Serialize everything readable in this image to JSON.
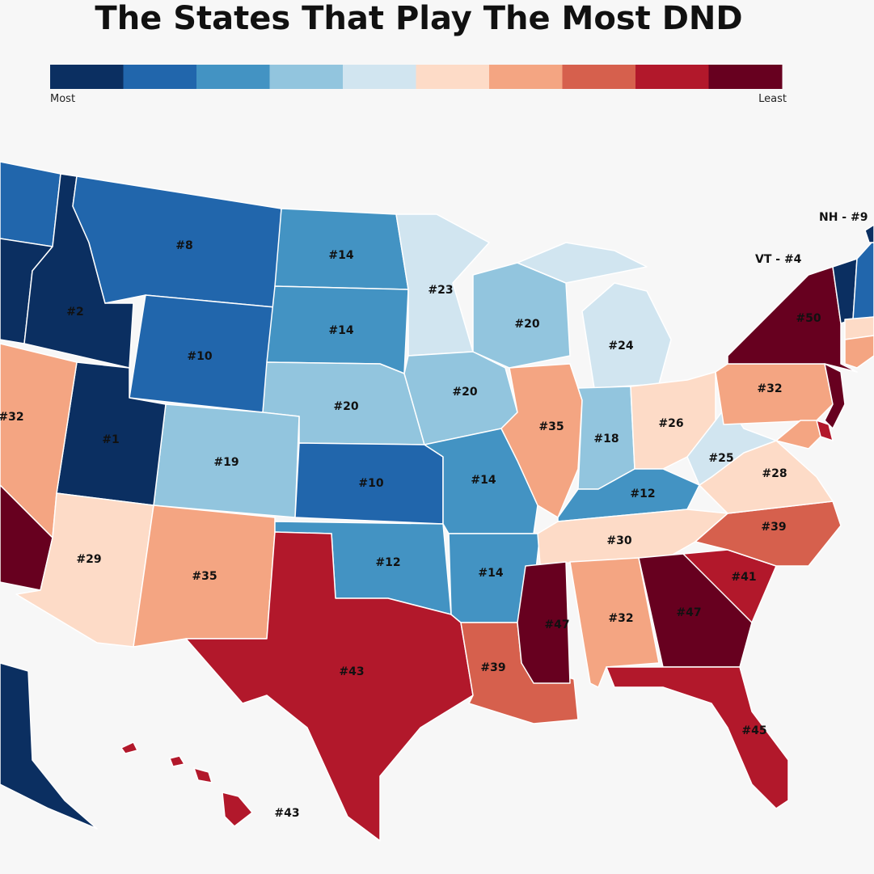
{
  "title": "The States That Play The Most DND",
  "legend": {
    "colors": [
      "#0b2f61",
      "#2166ac",
      "#4393c3",
      "#92c5de",
      "#d1e5f0",
      "#fddbc7",
      "#f4a582",
      "#d6604d",
      "#b2182b",
      "#67001f"
    ],
    "low_label": "Most",
    "high_label": "Least"
  },
  "states": [
    {
      "color": "#2166ac"
    },
    {
      "color": "#0b2f61"
    },
    {
      "label": "#2",
      "color": "#0b2f61"
    },
    {
      "label": "#8",
      "color": "#2166ac"
    },
    {
      "label": "#10",
      "color": "#2166ac"
    },
    {
      "label": "#14",
      "color": "#4393c3"
    },
    {
      "label": "#14",
      "color": "#4393c3"
    },
    {
      "label": "#20",
      "color": "#92c5de"
    },
    {
      "label": "#19",
      "color": "#92c5de"
    },
    {
      "label": "#1",
      "color": "#0b2f61"
    },
    {
      "label": "#32",
      "color": "#f4a582"
    },
    {
      "color": "#67001f"
    },
    {
      "label": "#29",
      "color": "#fddbc7"
    },
    {
      "label": "#35",
      "color": "#f4a582"
    },
    {
      "label": "#10",
      "color": "#2166ac"
    },
    {
      "label": "#12",
      "color": "#4393c3"
    },
    {
      "label": "#43",
      "color": "#b2182b"
    },
    {
      "label": "#23",
      "color": "#d1e5f0"
    },
    {
      "label": "#20",
      "color": "#92c5de"
    },
    {
      "label": "#14",
      "color": "#4393c3"
    },
    {
      "label": "#14",
      "color": "#4393c3"
    },
    {
      "label": "#39",
      "color": "#d6604d"
    },
    {
      "label": "#20",
      "color": "#92c5de"
    },
    {
      "label": "#35",
      "color": "#f4a582"
    },
    {
      "label": "#24",
      "color": "#d1e5f0"
    },
    {
      "label": "#18",
      "color": "#92c5de"
    },
    {
      "label": "#26",
      "color": "#fddbc7"
    },
    {
      "label": "#12",
      "color": "#4393c3"
    },
    {
      "label": "#30",
      "color": "#fddbc7"
    },
    {
      "label": "#47",
      "color": "#67001f"
    },
    {
      "label": "#32",
      "color": "#f4a582"
    },
    {
      "label": "#47",
      "color": "#67001f"
    },
    {
      "label": "#45",
      "color": "#b2182b"
    },
    {
      "label": "#41",
      "color": "#b2182b"
    },
    {
      "label": "#39",
      "color": "#d6604d"
    },
    {
      "label": "#28",
      "color": "#fddbc7"
    },
    {
      "label": "#25",
      "color": "#d1e5f0"
    },
    {
      "label": "#32",
      "color": "#f4a582"
    },
    {
      "label": "#50",
      "color": "#67001f"
    },
    {
      "color": "#67001f"
    },
    {
      "color": "#f4a582"
    },
    {
      "color": "#b2182b"
    },
    {
      "color": "#0b2f61"
    },
    {
      "color": "#2166ac"
    },
    {
      "color": "#0b2f61"
    },
    {
      "color": "#fddbc7"
    },
    {
      "color": "#f4a582"
    },
    {
      "color": "#0b2f61"
    },
    {
      "label": "#43",
      "color": "#b2182b"
    }
  ],
  "callouts": [
    {
      "label": "NH - #9"
    },
    {
      "label": "VT - #4"
    }
  ]
}
